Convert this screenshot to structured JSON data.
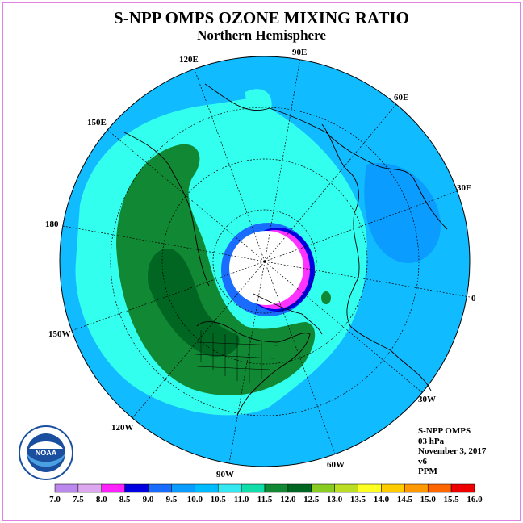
{
  "title": "S-NPP OMPS OZONE MIXING RATIO",
  "subtitle": "Northern Hemisphere",
  "longitude_labels": [
    "90E",
    "60E",
    "30E",
    "0",
    "30W",
    "60W",
    "90W",
    "120W",
    "150W",
    "180",
    "150E",
    "120E"
  ],
  "info": {
    "instrument": "S-NPP OMPS",
    "level": "03 hPa",
    "date": "November 3, 2017",
    "version": "v6",
    "units": "PPM"
  },
  "logo": {
    "text": "NOAA",
    "icon": "noaa-logo"
  },
  "colorbar": {
    "ticks": [
      "7.0",
      "7.5",
      "8.0",
      "8.5",
      "9.0",
      "9.5",
      "10.0",
      "10.5",
      "11.0",
      "11.5",
      "12.0",
      "12.5",
      "13.0",
      "13.5",
      "14.0",
      "14.5",
      "15.0",
      "15.5",
      "16.0"
    ],
    "colors": [
      "#bb88ee",
      "#dda8f0",
      "#ff22ff",
      "#0000e0",
      "#1a6cff",
      "#0a9cff",
      "#00bbff",
      "#33e8f0",
      "#11dda8",
      "#118833",
      "#006622",
      "#88cc22",
      "#bbdd22",
      "#ffff22",
      "#ffcc00",
      "#ff9900",
      "#ff6600",
      "#ee0000",
      "#885533"
    ]
  },
  "map_colors": {
    "polar_night": "#ffffff",
    "ring_1": "#ff33ff",
    "ring_2": "#0000e0",
    "ring_3": "#1a6cff",
    "cyan_light": "#33ffee",
    "sky_blue": "#11bbff",
    "mid_blue": "#0a9cff",
    "green": "#118833",
    "dark_green": "#006622"
  }
}
